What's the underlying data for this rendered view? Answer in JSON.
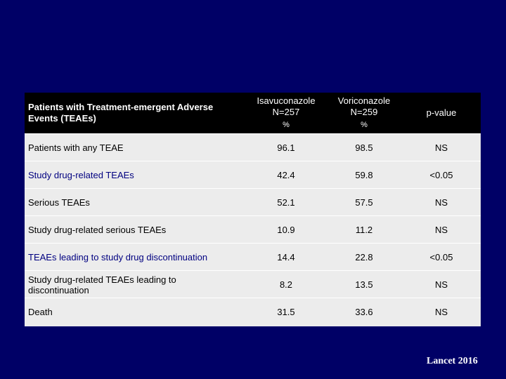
{
  "table": {
    "header": {
      "col0": "Patients with Treatment-emergent Adverse Events (TEAEs)",
      "col1_name": "Isavuconazole",
      "col1_n": "N=257",
      "col1_pct": "%",
      "col2_name": "Voriconazole",
      "col2_n": "N=259",
      "col2_pct": "%",
      "col3": "p-value"
    },
    "rows": [
      {
        "label": "Patients with any TEAE",
        "isa": "96.1",
        "vori": "98.5",
        "p": "NS"
      },
      {
        "label": "Study drug-related TEAEs",
        "isa": "42.4",
        "vori": "59.8",
        "p": "<0.05"
      },
      {
        "label": "Serious TEAEs",
        "isa": "52.1",
        "vori": "57.5",
        "p": "NS"
      },
      {
        "label": "Study drug-related serious TEAEs",
        "isa": "10.9",
        "vori": "11.2",
        "p": "NS"
      },
      {
        "label": "TEAEs leading to study drug discontinuation",
        "isa": "14.4",
        "vori": "22.8",
        "p": "<0.05"
      },
      {
        "label": "Study drug-related TEAEs leading to discontinuation",
        "isa": "8.2",
        "vori": "13.5",
        "p": "NS"
      },
      {
        "label": "Death",
        "isa": "31.5",
        "vori": "33.6",
        "p": "NS"
      }
    ]
  },
  "citation": "Lancet 2016"
}
